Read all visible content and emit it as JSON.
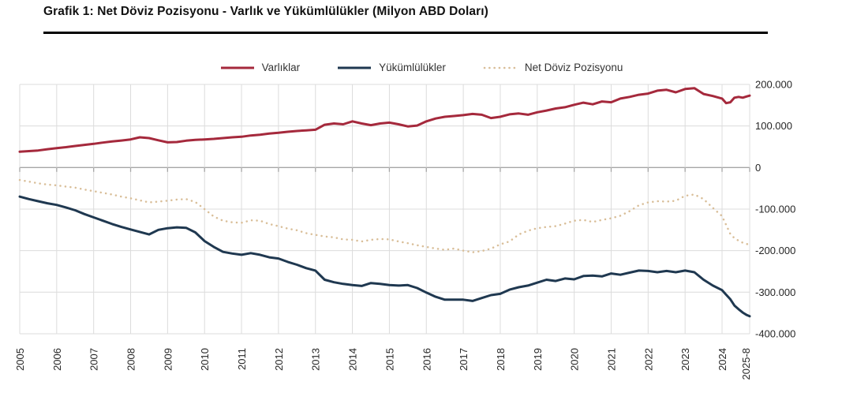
{
  "title": "Grafik 1: Net Döviz Pozisyonu - Varlık ve Yükümlülükler (Milyon ABD Doları)",
  "colors": {
    "assets": "#A5293C",
    "liabilities": "#1F3850",
    "net": "#D9BE98",
    "gridline": "#DCDCDC",
    "zero_line": "#A6A6A6",
    "axis_text": "#262626"
  },
  "chart_data": {
    "type": "line",
    "title": "Grafik 1: Net Döviz Pozisyonu - Varlık ve Yükümlülükler (Milyon ABD Doları)",
    "unit": "Milyon ABD Doları",
    "grid": true,
    "legend_position": "top",
    "x_axis": {
      "labels": [
        "2005",
        "2006",
        "2007",
        "2008",
        "2009",
        "2010",
        "2011",
        "2012",
        "2013",
        "2014",
        "2015",
        "2016",
        "2017",
        "2018",
        "2019",
        "2020",
        "2021",
        "2022",
        "2023",
        "2024",
        "2025-8"
      ]
    },
    "y_axis": {
      "min": -400000,
      "max": 200000,
      "ticks": [
        {
          "label": "200.000",
          "value": 200000
        },
        {
          "label": "100.000",
          "value": 100000
        },
        {
          "label": "0",
          "value": 0
        },
        {
          "label": "-100.000",
          "value": -100000
        },
        {
          "label": "-200.000",
          "value": -200000
        },
        {
          "label": "-300.000",
          "value": -300000
        },
        {
          "label": "-400.000",
          "value": -400000
        }
      ]
    },
    "x": [
      2005,
      2005.25,
      2005.5,
      2005.75,
      2006,
      2006.25,
      2006.5,
      2006.75,
      2007,
      2007.25,
      2007.5,
      2007.75,
      2008,
      2008.25,
      2008.5,
      2008.75,
      2009,
      2009.25,
      2009.5,
      2009.75,
      2010,
      2010.25,
      2010.5,
      2010.75,
      2011,
      2011.25,
      2011.5,
      2011.75,
      2012,
      2012.25,
      2012.5,
      2012.75,
      2013,
      2013.25,
      2013.5,
      2013.75,
      2014,
      2014.25,
      2014.5,
      2014.75,
      2015,
      2015.25,
      2015.5,
      2015.75,
      2016,
      2016.25,
      2016.5,
      2016.75,
      2017,
      2017.25,
      2017.5,
      2017.75,
      2018,
      2018.25,
      2018.5,
      2018.75,
      2019,
      2019.25,
      2019.5,
      2019.75,
      2020,
      2020.25,
      2020.5,
      2020.75,
      2021,
      2021.25,
      2021.5,
      2021.75,
      2022,
      2022.25,
      2022.5,
      2022.75,
      2023,
      2023.25,
      2023.5,
      2023.75,
      2024,
      2024.25,
      2024.5,
      2024.75,
      2025,
      2025.25,
      2025.5,
      2025.67
    ],
    "series": [
      {
        "name": "Varlıklar",
        "color": "#A5293C",
        "style": "solid",
        "values": [
          38000,
          39500,
          41000,
          44000,
          46700,
          49000,
          51800,
          54500,
          57000,
          60000,
          62700,
          65000,
          67600,
          72700,
          70800,
          65500,
          60500,
          61300,
          64600,
          66500,
          67600,
          68900,
          70800,
          72700,
          74000,
          77100,
          79000,
          81600,
          83500,
          86000,
          88000,
          89500,
          91000,
          103000,
          106000,
          104000,
          111000,
          106000,
          102000,
          106000,
          108000,
          104000,
          99000,
          101000,
          111000,
          118000,
          122000,
          124000,
          126000,
          129000,
          127000,
          119000,
          122000,
          128000,
          130000,
          127000,
          133000,
          137000,
          142000,
          145000,
          151000,
          156000,
          152000,
          159000,
          157000,
          166000,
          170000,
          175000,
          178000,
          185000,
          187000,
          181000,
          189000,
          191000,
          177000,
          172000,
          166000,
          155000,
          157000,
          168000,
          170000,
          168000,
          171000,
          173000
        ]
      },
      {
        "name": "Yükümlülükler",
        "color": "#1F3850",
        "style": "solid",
        "values": [
          -70000,
          -76000,
          -81000,
          -86000,
          -90000,
          -96000,
          -103000,
          -112000,
          -120000,
          -128000,
          -136000,
          -143000,
          -149000,
          -155000,
          -161000,
          -150000,
          -146000,
          -144000,
          -145000,
          -156000,
          -177000,
          -191000,
          -203000,
          -207000,
          -210000,
          -206000,
          -210000,
          -216000,
          -219000,
          -227000,
          -234000,
          -242000,
          -248000,
          -270000,
          -276000,
          -280000,
          -283000,
          -285000,
          -278000,
          -280000,
          -283000,
          -284000,
          -283000,
          -290000,
          -301000,
          -311000,
          -318000,
          -318000,
          -318000,
          -321000,
          -314000,
          -307000,
          -304000,
          -294000,
          -288000,
          -284000,
          -277000,
          -270000,
          -273000,
          -267000,
          -269000,
          -261000,
          -260000,
          -262000,
          -255000,
          -258000,
          -253000,
          -248000,
          -249000,
          -252000,
          -249000,
          -252000,
          -248000,
          -252000,
          -270000,
          -284000,
          -295000,
          -306000,
          -317000,
          -332000,
          -341000,
          -349000,
          -355000,
          -358000
        ]
      },
      {
        "name": "Net Döviz Pozisyonu",
        "color": "#D9BE98",
        "style": "dotted",
        "values": [
          -30000,
          -34000,
          -38000,
          -41000,
          -43000,
          -46000,
          -48500,
          -53000,
          -57000,
          -61000,
          -65000,
          -70000,
          -74000,
          -79000,
          -84000,
          -82000,
          -80000,
          -77000,
          -76000,
          -83000,
          -100000,
          -118000,
          -128000,
          -132000,
          -133000,
          -127000,
          -128000,
          -136000,
          -141000,
          -147000,
          -151000,
          -158000,
          -162000,
          -166000,
          -168000,
          -173000,
          -174000,
          -178000,
          -174000,
          -172000,
          -173000,
          -178000,
          -182000,
          -187000,
          -191000,
          -195000,
          -198000,
          -195000,
          -200000,
          -204000,
          -201000,
          -195000,
          -185000,
          -178000,
          -161000,
          -152000,
          -146000,
          -143000,
          -141000,
          -135000,
          -128000,
          -126000,
          -131000,
          -126000,
          -122000,
          -116000,
          -105000,
          -91000,
          -84000,
          -81000,
          -82000,
          -80000,
          -68000,
          -65000,
          -76000,
          -97000,
          -117000,
          -138000,
          -160000,
          -170000,
          -176000,
          -181000,
          -184000,
          -186000
        ]
      }
    ]
  }
}
